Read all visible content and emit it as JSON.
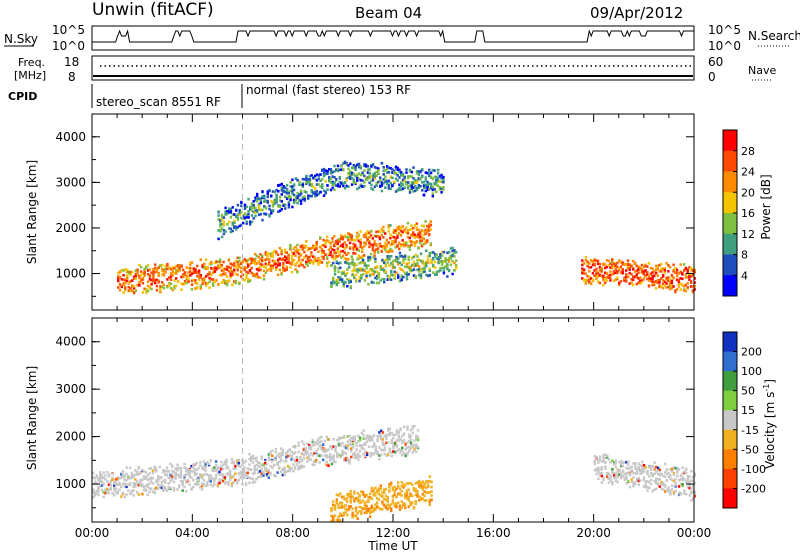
{
  "header": {
    "title_left": "Unwin (fitACF)",
    "title_center": "Beam 04",
    "title_right": "09/Apr/2012"
  },
  "aux_panels": {
    "nsky_label": "N.Sky",
    "nsearch_label": "N.Search",
    "nsky_ticks": [
      "10^5",
      "10^0"
    ],
    "nsearch_ticks": [
      "10^5",
      "10^0"
    ],
    "freq_label_1": "Freq.",
    "freq_label_2": "[MHz]",
    "freq_ticks": [
      "18",
      "8"
    ],
    "nave_label": "Nave",
    "nave_ticks": [
      "60",
      "0"
    ],
    "cpid_label": "CPID",
    "cpid_segments": [
      {
        "label": "stereo_scan 8551 RF",
        "start_hour": 0
      },
      {
        "label": "normal (fast stereo) 153 RF",
        "start_hour": 6
      }
    ]
  },
  "chart_data": [
    {
      "type": "heatmap",
      "name": "power",
      "ylabel": "Slant Range [km]",
      "xlabel": "Time UT",
      "xlim_hours": [
        0,
        24
      ],
      "ylim": [
        200,
        4500
      ],
      "y_ticks": [
        1000,
        2000,
        3000,
        4000
      ],
      "colorbar": {
        "label": "Power [dB]",
        "ticks": [
          "28",
          "24",
          "20",
          "16",
          "12",
          "8",
          "4"
        ],
        "colors": [
          "#ff0000",
          "#ff4a00",
          "#ff8c00",
          "#f4c400",
          "#7fbf3f",
          "#3f9f7f",
          "#1f4fbf",
          "#0000ff"
        ]
      },
      "echo_regions": [
        {
          "t": [
            1,
            6,
            9,
            12,
            13.5
          ],
          "range_km": [
            850,
            1100,
            1500,
            1800,
            1900
          ],
          "level_db": 24,
          "desc_color": "red"
        },
        {
          "t": [
            5,
            8,
            10,
            14
          ],
          "range_km": [
            2100,
            2800,
            3200,
            3000
          ],
          "level_db": 10
        },
        {
          "t": [
            9.5,
            14.5
          ],
          "range_km": [
            1000,
            1300
          ],
          "level_db": 14
        },
        {
          "t": [
            19.5,
            24
          ],
          "range_km": [
            1100,
            900
          ],
          "level_db": 26
        }
      ]
    },
    {
      "type": "heatmap",
      "name": "velocity",
      "ylabel": "Slant Range [km]",
      "xlabel": "Time UT",
      "xlim_hours": [
        0,
        24
      ],
      "ylim": [
        200,
        4500
      ],
      "y_ticks": [
        1000,
        2000,
        3000,
        4000
      ],
      "x_ticks": [
        "00:00",
        "04:00",
        "08:00",
        "12:00",
        "16:00",
        "20:00",
        "00:00"
      ],
      "colorbar": {
        "label_main": "Velocity",
        "label_unit": "[m s",
        "label_exp": "-1",
        "label_close": "]",
        "ticks": [
          "200",
          "100",
          "50",
          "15",
          "-15",
          "-50",
          "-100",
          "-200"
        ],
        "colors": [
          "#1030c0",
          "#2f6fcf",
          "#3f9f3f",
          "#7fd040",
          "#c8c8c8",
          "#f0b020",
          "#ff8000",
          "#ff4000",
          "#ff0000"
        ]
      },
      "echo_regions": [
        {
          "t": [
            0,
            6,
            9,
            13
          ],
          "range_km": [
            1000,
            1300,
            1700,
            2000
          ],
          "velocity": 0,
          "desc_color": "grey"
        },
        {
          "t": [
            9.5,
            13.5
          ],
          "range_km": [
            500,
            900
          ],
          "velocity": -30,
          "desc_color": "orange"
        },
        {
          "t": [
            20,
            24
          ],
          "range_km": [
            1400,
            1000
          ],
          "velocity": 0,
          "desc_color": "grey"
        }
      ]
    }
  ],
  "colors": {
    "grey_ground": "#c8c8c8",
    "frame": "#000000"
  }
}
